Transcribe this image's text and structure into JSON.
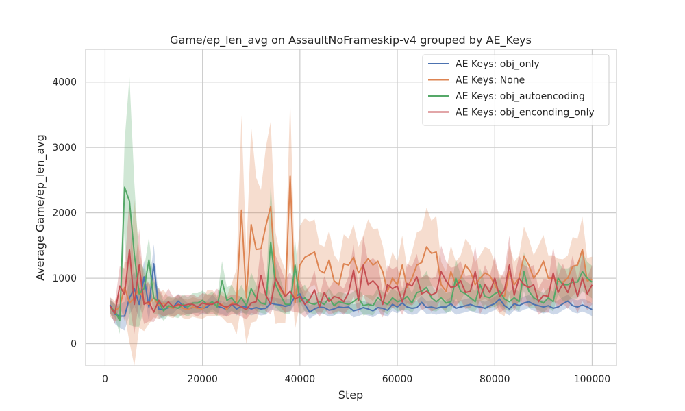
{
  "chart_data": {
    "type": "line",
    "title": "Game/ep_len_avg on AssaultNoFrameskip-v4 grouped by AE_Keys",
    "xlabel": "Step",
    "ylabel": "Average Game/ep_len_avg",
    "xlim": [
      -4000,
      105000
    ],
    "ylim": [
      -340,
      4500
    ],
    "x_ticks": [
      0,
      20000,
      40000,
      60000,
      80000,
      100000
    ],
    "x_tick_labels": [
      "0",
      "20000",
      "40000",
      "60000",
      "80000",
      "100000"
    ],
    "y_ticks": [
      0,
      1000,
      2000,
      3000,
      4000
    ],
    "y_tick_labels": [
      "0",
      "1000",
      "2000",
      "3000",
      "4000"
    ],
    "grid": true,
    "legend_position": "top-right",
    "x": [
      1000,
      2000,
      3000,
      4000,
      5000,
      6000,
      7000,
      8000,
      9000,
      10000,
      11000,
      12000,
      13000,
      14000,
      15000,
      16000,
      17000,
      18000,
      19000,
      20000,
      21000,
      22000,
      23000,
      24000,
      25000,
      26000,
      27000,
      28000,
      29000,
      30000,
      31000,
      32000,
      33000,
      34000,
      35000,
      36000,
      37000,
      38000,
      39000,
      40000,
      41000,
      42000,
      43000,
      44000,
      45000,
      46000,
      47000,
      48000,
      49000,
      50000,
      51000,
      52000,
      53000,
      54000,
      55000,
      56000,
      57000,
      58000,
      59000,
      60000,
      61000,
      62000,
      63000,
      64000,
      65000,
      66000,
      67000,
      68000,
      69000,
      70000,
      71000,
      72000,
      73000,
      74000,
      75000,
      76000,
      77000,
      78000,
      79000,
      80000,
      81000,
      82000,
      83000,
      84000,
      85000,
      86000,
      87000,
      88000,
      89000,
      90000,
      91000,
      92000,
      93000,
      94000,
      95000,
      96000,
      97000,
      98000,
      99000,
      100000
    ],
    "series": [
      {
        "name": "AE Keys: obj_only",
        "color": "#4c72b0",
        "values": [
          590,
          450,
          420,
          420,
          700,
          840,
          600,
          1020,
          560,
          1220,
          530,
          520,
          550,
          560,
          650,
          580,
          530,
          550,
          560,
          540,
          560,
          640,
          570,
          550,
          520,
          600,
          530,
          570,
          560,
          530,
          550,
          530,
          540,
          620,
          600,
          590,
          570,
          590,
          720,
          760,
          600,
          480,
          530,
          560,
          550,
          510,
          530,
          560,
          550,
          560,
          500,
          520,
          550,
          530,
          500,
          550,
          540,
          510,
          600,
          560,
          620,
          560,
          540,
          550,
          630,
          550,
          560,
          540,
          560,
          560,
          610,
          540,
          560,
          580,
          600,
          570,
          560,
          540,
          580,
          610,
          680,
          580,
          530,
          610,
          580,
          620,
          640,
          600,
          580,
          560,
          580,
          540,
          560,
          610,
          650,
          580,
          560,
          590,
          560,
          520
        ],
        "band": [
          120,
          150,
          180,
          220,
          260,
          260,
          220,
          250,
          220,
          300,
          150,
          120,
          100,
          100,
          110,
          100,
          90,
          90,
          90,
          100,
          100,
          110,
          100,
          100,
          100,
          100,
          100,
          100,
          100,
          100,
          100,
          100,
          100,
          100,
          100,
          100,
          100,
          100,
          110,
          120,
          110,
          100,
          100,
          100,
          100,
          100,
          100,
          100,
          100,
          100,
          100,
          100,
          100,
          100,
          100,
          100,
          100,
          100,
          100,
          100,
          100,
          100,
          100,
          100,
          100,
          100,
          100,
          100,
          100,
          100,
          100,
          100,
          100,
          100,
          100,
          100,
          100,
          100,
          100,
          100,
          110,
          100,
          100,
          100,
          100,
          100,
          100,
          100,
          100,
          100,
          100,
          100,
          100,
          100,
          100,
          100,
          100,
          100,
          100,
          100
        ]
      },
      {
        "name": "AE Keys: None",
        "color": "#dd8452",
        "values": [
          560,
          500,
          560,
          860,
          620,
          700,
          840,
          640,
          600,
          700,
          580,
          620,
          560,
          540,
          600,
          540,
          520,
          560,
          540,
          530,
          620,
          620,
          580,
          600,
          520,
          620,
          640,
          2040,
          700,
          1820,
          1440,
          1450,
          1800,
          2100,
          1000,
          820,
          720,
          2560,
          620,
          1200,
          1320,
          1360,
          1400,
          1120,
          1080,
          1280,
          960,
          900,
          1220,
          1200,
          1320,
          1080,
          1200,
          1300,
          1200,
          1260,
          1100,
          800,
          1000,
          900,
          1200,
          860,
          1000,
          1200,
          1240,
          1480,
          1380,
          1400,
          900,
          800,
          1100,
          900,
          1000,
          1200,
          1100,
          900,
          1000,
          1080,
          1040,
          900,
          760,
          720,
          1100,
          900,
          1000,
          1340,
          1200,
          1000,
          1100,
          1260,
          1000,
          1000,
          950,
          940,
          1000,
          1180,
          1200,
          1440,
          960,
          980
        ],
        "band": [
          150,
          150,
          200,
          400,
          600,
          1500,
          600,
          450,
          300,
          300,
          200,
          200,
          150,
          150,
          150,
          150,
          150,
          150,
          150,
          150,
          200,
          200,
          150,
          200,
          200,
          300,
          500,
          1450,
          700,
          1500,
          1100,
          900,
          1200,
          1300,
          700,
          500,
          400,
          1200,
          400,
          600,
          600,
          500,
          500,
          400,
          400,
          450,
          400,
          350,
          450,
          400,
          500,
          400,
          450,
          600,
          550,
          500,
          400,
          300,
          400,
          350,
          450,
          300,
          400,
          500,
          500,
          600,
          500,
          550,
          350,
          300,
          400,
          350,
          350,
          400,
          400,
          350,
          350,
          400,
          400,
          350,
          300,
          300,
          400,
          350,
          350,
          450,
          400,
          350,
          400,
          400,
          350,
          350,
          350,
          350,
          350,
          450,
          400,
          500,
          350,
          350
        ]
      },
      {
        "name": "AE Keys: obj_autoencoding",
        "color": "#55a868",
        "values": [
          560,
          500,
          350,
          2390,
          2180,
          1360,
          760,
          840,
          1280,
          700,
          640,
          500,
          580,
          560,
          540,
          600,
          560,
          620,
          620,
          660,
          600,
          640,
          560,
          960,
          660,
          700,
          600,
          700,
          580,
          840,
          700,
          620,
          600,
          1550,
          900,
          740,
          600,
          600,
          1200,
          640,
          700,
          620,
          600,
          640,
          600,
          700,
          580,
          640,
          620,
          600,
          640,
          700,
          580,
          600,
          580,
          700,
          640,
          600,
          700,
          640,
          660,
          720,
          620,
          780,
          800,
          860,
          700,
          640,
          700,
          620,
          640,
          1000,
          800,
          760,
          700,
          640,
          900,
          720,
          700,
          760,
          800,
          680,
          640,
          700,
          640,
          1100,
          800,
          700,
          660,
          620,
          700,
          640,
          1000,
          900,
          900,
          940,
          940,
          1100,
          1000,
          940
        ],
        "band": [
          100,
          100,
          200,
          700,
          1900,
          1100,
          500,
          300,
          350,
          250,
          200,
          150,
          150,
          150,
          150,
          150,
          150,
          150,
          150,
          150,
          150,
          150,
          150,
          300,
          200,
          200,
          150,
          200,
          150,
          250,
          200,
          150,
          150,
          900,
          350,
          250,
          150,
          150,
          400,
          200,
          200,
          150,
          150,
          150,
          150,
          150,
          150,
          150,
          150,
          150,
          150,
          150,
          150,
          150,
          150,
          150,
          150,
          150,
          150,
          150,
          150,
          200,
          150,
          200,
          200,
          250,
          200,
          150,
          150,
          150,
          150,
          300,
          250,
          200,
          200,
          150,
          250,
          200,
          150,
          200,
          200,
          150,
          150,
          150,
          150,
          300,
          250,
          150,
          150,
          150,
          150,
          150,
          250,
          250,
          250,
          250,
          250,
          300,
          250,
          250
        ]
      },
      {
        "name": "AE Keys: obj_enconding_only",
        "color": "#c44e52",
        "values": [
          570,
          460,
          880,
          750,
          1430,
          600,
          1200,
          600,
          640,
          480,
          660,
          560,
          640,
          560,
          600,
          580,
          600,
          600,
          560,
          620,
          600,
          600,
          640,
          580,
          560,
          600,
          600,
          560,
          520,
          620,
          640,
          1040,
          740,
          600,
          1000,
          860,
          720,
          800,
          680,
          720,
          600,
          680,
          820,
          560,
          780,
          640,
          720,
          700,
          640,
          780,
          1120,
          660,
          1200,
          900,
          960,
          880,
          600,
          900,
          840,
          880,
          640,
          920,
          880,
          1020,
          760,
          800,
          740,
          780,
          1100,
          960,
          860,
          880,
          960,
          780,
          800,
          1100,
          700,
          900,
          780,
          1000,
          720,
          820,
          1200,
          740,
          1000,
          900,
          860,
          900,
          640,
          740,
          720,
          1080,
          780,
          920,
          780,
          1000,
          720,
          1000,
          760,
          900
        ],
        "band": [
          100,
          150,
          300,
          400,
          800,
          450,
          550,
          300,
          300,
          150,
          200,
          150,
          200,
          150,
          150,
          150,
          150,
          150,
          150,
          150,
          150,
          150,
          200,
          150,
          150,
          150,
          150,
          150,
          150,
          150,
          200,
          450,
          250,
          150,
          350,
          300,
          250,
          300,
          200,
          250,
          200,
          200,
          300,
          150,
          250,
          200,
          250,
          200,
          200,
          250,
          400,
          200,
          450,
          350,
          350,
          350,
          200,
          300,
          300,
          300,
          200,
          300,
          300,
          350,
          250,
          250,
          250,
          250,
          400,
          300,
          300,
          300,
          300,
          250,
          250,
          400,
          250,
          300,
          250,
          350,
          250,
          300,
          450,
          250,
          350,
          300,
          300,
          300,
          200,
          250,
          250,
          400,
          250,
          300,
          250,
          350,
          250,
          350,
          250,
          300
        ]
      }
    ]
  }
}
